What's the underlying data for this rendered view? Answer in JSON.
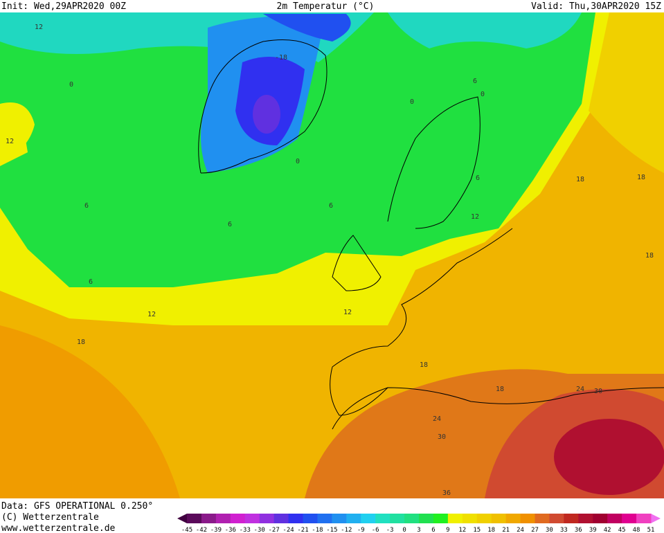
{
  "header": {
    "init": "Init: Wed,29APR2020 00Z",
    "title": "2m Temperatur (°C)",
    "valid": "Valid: Thu,30APR2020 15Z"
  },
  "footer": {
    "data": "Data: GFS OPERATIONAL 0.250°",
    "copyright": "(C) Wetterzentrale",
    "url": "www.wetterzentrale.de"
  },
  "legend": {
    "labels": [
      -45,
      -42,
      -39,
      -36,
      -33,
      -30,
      -27,
      -24,
      -21,
      -18,
      -15,
      -12,
      -9,
      -6,
      -3,
      0,
      3,
      6,
      9,
      12,
      15,
      18,
      21,
      24,
      27,
      30,
      33,
      36,
      39,
      42,
      45,
      48,
      51
    ],
    "colors": [
      "#5a0a5a",
      "#8a1a8a",
      "#b020b0",
      "#d020d0",
      "#c030e0",
      "#9030e0",
      "#6030e0",
      "#3030f0",
      "#2050f0",
      "#2070f0",
      "#2090f0",
      "#20b0f0",
      "#20d0f0",
      "#20e0c0",
      "#20e0a0",
      "#20e080",
      "#20e050",
      "#20f020",
      "#f0f000",
      "#f0e000",
      "#f0d000",
      "#f0c000",
      "#f0a800",
      "#f09000",
      "#e06a20",
      "#d04a30",
      "#c02820",
      "#b01030",
      "#a00030",
      "#c00060",
      "#e00090",
      "#f040c0"
    ],
    "under_color": "#400040",
    "over_color": "#f070f0"
  },
  "map": {
    "contour_labels": [
      12,
      -18,
      0,
      0,
      6,
      0,
      12,
      0,
      6,
      6,
      6,
      6,
      12,
      18,
      18,
      18,
      6,
      12,
      12,
      18,
      18,
      18,
      24,
      30,
      24,
      30,
      36
    ]
  }
}
